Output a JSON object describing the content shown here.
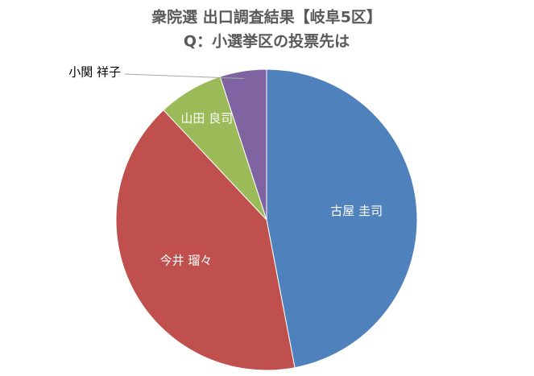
{
  "chart_data": {
    "type": "pie",
    "title": "衆院選 出口調査結果【岐阜5区】",
    "subtitle": "Q：小選挙区の投票先は",
    "categories": [
      "古屋 圭司",
      "今井 瑠々",
      "山田 良司",
      "小関 祥子"
    ],
    "values": [
      47,
      41,
      7,
      5
    ],
    "colors": [
      "#4f81bd",
      "#c0504d",
      "#9bbb59",
      "#8064a2"
    ]
  }
}
